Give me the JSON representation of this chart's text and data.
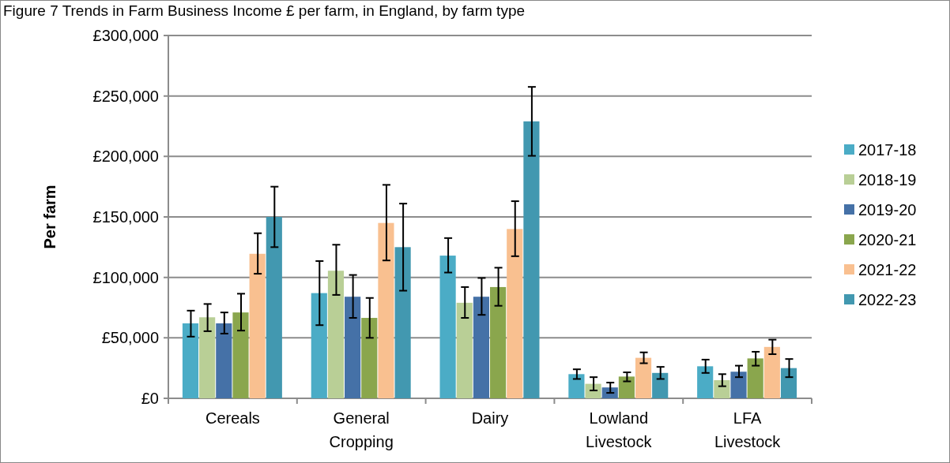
{
  "chart_data": {
    "type": "bar",
    "title": "Figure 7 Trends in Farm Business Income £ per farm, in England, by farm type",
    "ylabel": "Per farm",
    "categories": [
      "Cereals",
      "General Cropping",
      "Dairy",
      "Lowland Livestock",
      "LFA Livestock"
    ],
    "ylim": [
      0,
      300000
    ],
    "yticks": [
      {
        "value": 0,
        "label": "£0"
      },
      {
        "value": 50000,
        "label": "£50,000"
      },
      {
        "value": 100000,
        "label": "£100,000"
      },
      {
        "value": 150000,
        "label": "£150,000"
      },
      {
        "value": 200000,
        "label": "£200,000"
      },
      {
        "value": 250000,
        "label": "£250,000"
      },
      {
        "value": 300000,
        "label": "£300,000"
      }
    ],
    "grid": "y",
    "legend": "right",
    "series": [
      {
        "name": "2017-18",
        "color": "#4bacc6",
        "values": [
          62000,
          87000,
          118000,
          20000,
          26500
        ],
        "errors": [
          [
            51000,
            72500
          ],
          [
            60500,
            113500
          ],
          [
            104000,
            132500
          ],
          [
            16000,
            24000
          ],
          [
            21000,
            32000
          ]
        ]
      },
      {
        "name": "2018-19",
        "color": "#b9cf96",
        "values": [
          67000,
          105500,
          79000,
          12000,
          15000
        ],
        "errors": [
          [
            55500,
            78000
          ],
          [
            85500,
            127000
          ],
          [
            66500,
            92000
          ],
          [
            6500,
            17500
          ],
          [
            10000,
            20000
          ]
        ]
      },
      {
        "name": "2019-20",
        "color": "#4571a7",
        "values": [
          62000,
          84000,
          84000,
          9000,
          22000
        ],
        "errors": [
          [
            53500,
            71000
          ],
          [
            66500,
            102000
          ],
          [
            69000,
            99500
          ],
          [
            4500,
            13000
          ],
          [
            17500,
            27000
          ]
        ]
      },
      {
        "name": "2020-21",
        "color": "#8aa64d",
        "values": [
          71000,
          66500,
          92000,
          18000,
          33000
        ],
        "errors": [
          [
            56000,
            86500
          ],
          [
            50000,
            83000
          ],
          [
            76500,
            108000
          ],
          [
            14000,
            21500
          ],
          [
            27000,
            38500
          ]
        ]
      },
      {
        "name": "2021-22",
        "color": "#f9c090",
        "values": [
          119500,
          145000,
          140000,
          33500,
          42500
        ],
        "errors": [
          [
            103000,
            136500
          ],
          [
            114000,
            176500
          ],
          [
            117500,
            163000
          ],
          [
            29000,
            38000
          ],
          [
            36500,
            48500
          ]
        ]
      },
      {
        "name": "2022-23",
        "color": "#4298b0",
        "values": [
          150000,
          125000,
          229000,
          21000,
          25000
        ],
        "errors": [
          [
            125000,
            175000
          ],
          [
            89000,
            161000
          ],
          [
            200500,
            257500
          ],
          [
            16000,
            26000
          ],
          [
            17500,
            32500
          ]
        ]
      }
    ]
  }
}
